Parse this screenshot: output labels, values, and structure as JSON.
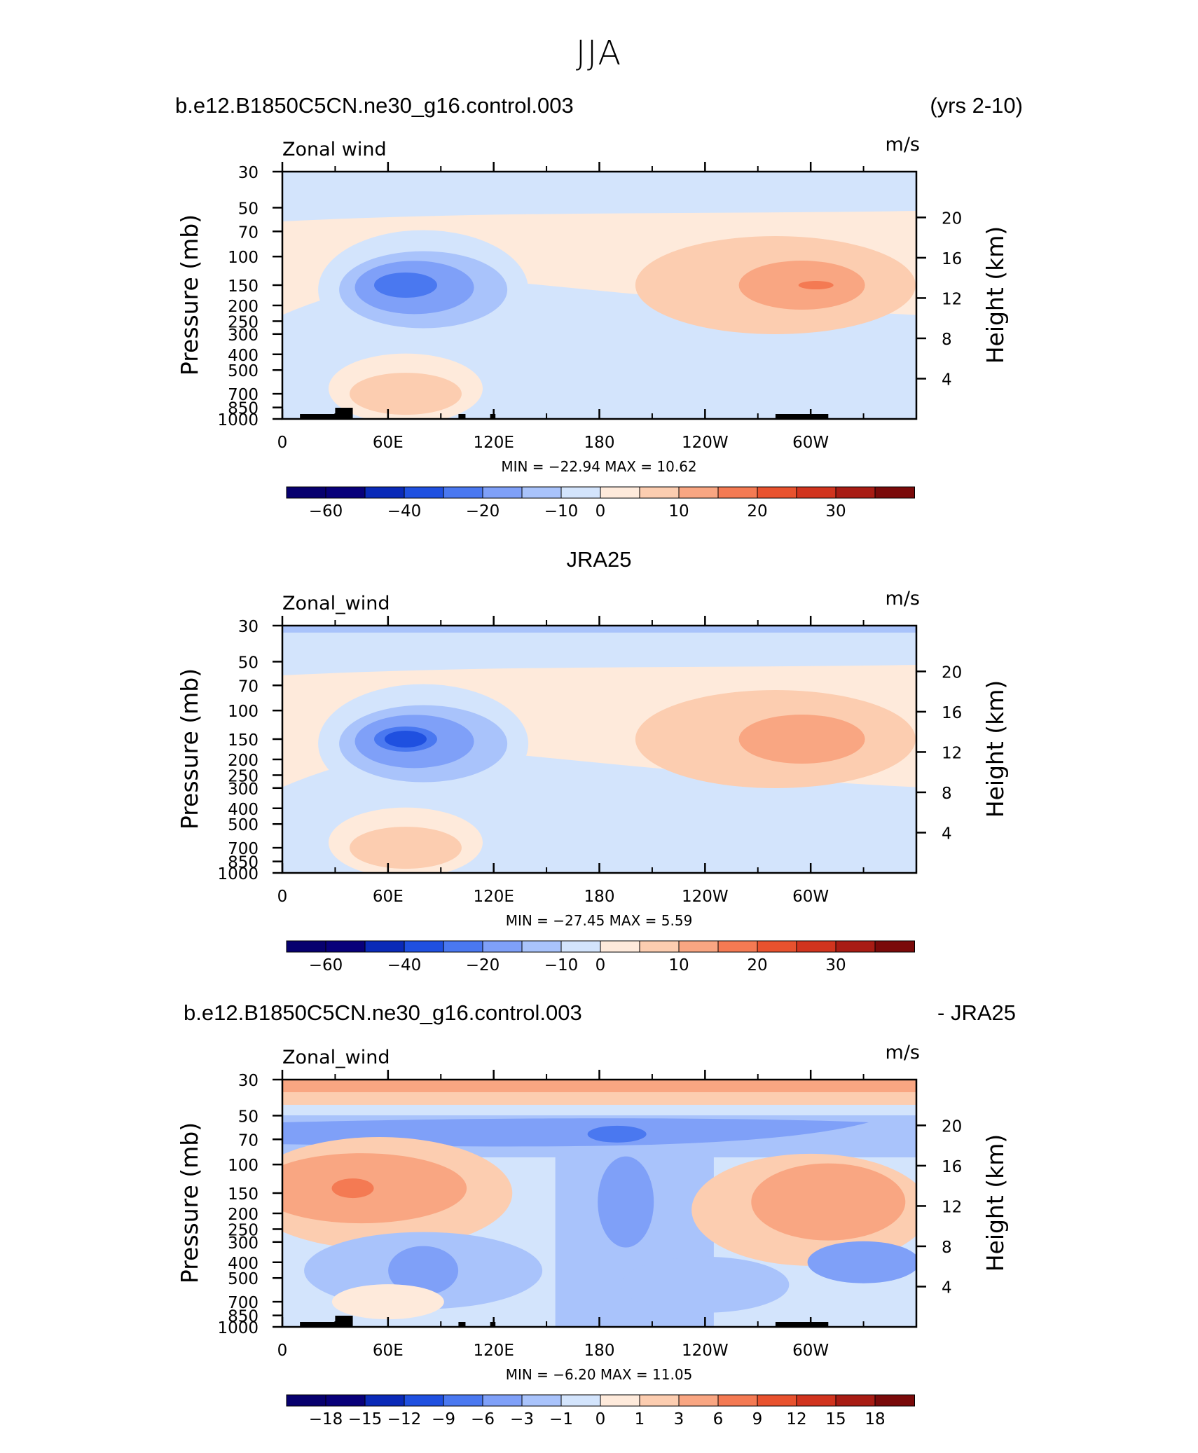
{
  "main_title": "JJA",
  "panels": [
    {
      "left_header": "b.e12.B1850C5CN.ne30_g16.control.003",
      "right_header": "(yrs 2-10)",
      "center_header": "",
      "var_label": "Zonal wind",
      "units": "m/s",
      "minmax": "MIN =  −22.94   MAX =    10.62"
    },
    {
      "left_header": "",
      "right_header": "",
      "center_header": "JRA25",
      "var_label": "Zonal_wind",
      "units": "m/s",
      "minmax": "MIN =  −27.45   MAX =     5.59"
    },
    {
      "left_header": "b.e12.B1850C5CN.ne30_g16.control.003",
      "right_header": "- JRA25",
      "center_header": "",
      "var_label": "Zonal_wind",
      "units": "m/s",
      "minmax": "MIN =    −6.20   MAX =    11.05"
    }
  ],
  "chart_data": [
    {
      "type": "heatmap",
      "title": "b.e12.B1850C5CN.ne30_g16.control.003 (yrs 2-10)",
      "variable": "Zonal wind",
      "units": "m/s",
      "xlabel": "",
      "ylabel": "Pressure (mb)",
      "y2label": "Height (km)",
      "x_ticks": [
        "0",
        "60E",
        "120E",
        "180",
        "120W",
        "60W"
      ],
      "y_ticks": [
        30,
        50,
        70,
        100,
        150,
        200,
        250,
        300,
        400,
        500,
        700,
        850,
        1000
      ],
      "y2_ticks": [
        4,
        8,
        12,
        16,
        20
      ],
      "y_scale": "log",
      "ylim": [
        1000,
        30
      ],
      "colorbar_labels": [
        "−60",
        "−40",
        "−20",
        "−10",
        "0",
        "10",
        "20",
        "30"
      ],
      "min": -22.94,
      "max": 10.62,
      "features": [
        {
          "name": "easterly jet",
          "lon": 75,
          "p": 150,
          "value": -20
        },
        {
          "name": "westerly max",
          "lon": 300,
          "p": 150,
          "value": 10
        }
      ]
    },
    {
      "type": "heatmap",
      "title": "JRA25",
      "variable": "Zonal_wind",
      "units": "m/s",
      "xlabel": "",
      "ylabel": "Pressure (mb)",
      "y2label": "Height (km)",
      "x_ticks": [
        "0",
        "60E",
        "120E",
        "180",
        "120W",
        "60W"
      ],
      "y_ticks": [
        30,
        50,
        70,
        100,
        150,
        200,
        250,
        300,
        400,
        500,
        700,
        850,
        1000
      ],
      "y2_ticks": [
        4,
        8,
        12,
        16,
        20
      ],
      "y_scale": "log",
      "ylim": [
        1000,
        30
      ],
      "colorbar_labels": [
        "−60",
        "−40",
        "−20",
        "−10",
        "0",
        "10",
        "20",
        "30"
      ],
      "min": -27.45,
      "max": 5.59,
      "features": [
        {
          "name": "easterly jet",
          "lon": 75,
          "p": 150,
          "value": -25
        },
        {
          "name": "westerly max",
          "lon": 300,
          "p": 150,
          "value": 5
        }
      ]
    },
    {
      "type": "heatmap",
      "title": "b.e12.B1850C5CN.ne30_g16.control.003 - JRA25",
      "variable": "Zonal_wind",
      "units": "m/s",
      "xlabel": "",
      "ylabel": "Pressure (mb)",
      "y2label": "Height (km)",
      "x_ticks": [
        "0",
        "60E",
        "120E",
        "180",
        "120W",
        "60W"
      ],
      "y_ticks": [
        30,
        50,
        70,
        100,
        150,
        200,
        250,
        300,
        400,
        500,
        700,
        850,
        1000
      ],
      "y2_ticks": [
        4,
        8,
        12,
        16,
        20
      ],
      "y_scale": "log",
      "ylim": [
        1000,
        30
      ],
      "colorbar_labels": [
        "−18",
        "−15",
        "−12",
        "−9",
        "−6",
        "−3",
        "−1",
        "0",
        "1",
        "3",
        "6",
        "9",
        "12",
        "15",
        "18"
      ],
      "min": -6.2,
      "max": 11.05,
      "features": [
        {
          "name": "positive bias",
          "lon": 45,
          "p": 150,
          "value": 9
        },
        {
          "name": "negative bias",
          "lon": 190,
          "p": 70,
          "value": -6
        }
      ]
    }
  ],
  "colors": {
    "cmap": [
      "#08007a",
      "#0a2ab8",
      "#1f50e0",
      "#4a78f0",
      "#7fa0f8",
      "#a9c3fb",
      "#d3e4fc",
      "#feeadb",
      "#fccdb0",
      "#f9a682",
      "#f47a53",
      "#e8522e",
      "#d1341e",
      "#a81c14",
      "#7a0a0a"
    ]
  }
}
